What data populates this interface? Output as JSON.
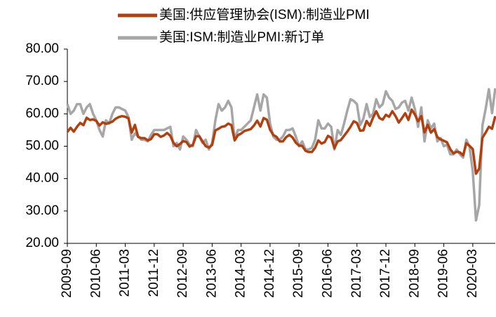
{
  "chart_data": {
    "type": "line",
    "categories": [
      "2009-09",
      null,
      null,
      null,
      null,
      null,
      null,
      null,
      null,
      "2010-06",
      null,
      null,
      null,
      null,
      null,
      null,
      null,
      null,
      "2011-03",
      null,
      null,
      null,
      null,
      null,
      null,
      null,
      null,
      "2011-12",
      null,
      null,
      null,
      null,
      null,
      null,
      null,
      null,
      "2012-09",
      null,
      null,
      null,
      null,
      null,
      null,
      null,
      null,
      "2013-06",
      null,
      null,
      null,
      null,
      null,
      null,
      null,
      null,
      "2014-03",
      null,
      null,
      null,
      null,
      null,
      null,
      null,
      null,
      "2014-12",
      null,
      null,
      null,
      null,
      null,
      null,
      null,
      null,
      "2015-09",
      null,
      null,
      null,
      null,
      null,
      null,
      null,
      null,
      "2016-06",
      null,
      null,
      null,
      null,
      null,
      null,
      null,
      null,
      "2017-03",
      null,
      null,
      null,
      null,
      null,
      null,
      null,
      null,
      "2017-12",
      null,
      null,
      null,
      null,
      null,
      null,
      null,
      null,
      "2018-09",
      null,
      null,
      null,
      null,
      null,
      null,
      null,
      null,
      "2019-06",
      null,
      null,
      null,
      null,
      null,
      null,
      null,
      null,
      "2020-03",
      null,
      null,
      null,
      null,
      null,
      null,
      null
    ],
    "series": [
      {
        "name": "美国:供应管理协会(ISM):制造业PMI",
        "color": "#b2400f",
        "values": [
          54.4,
          55.7,
          54.5,
          56.0,
          57.2,
          56.5,
          58.8,
          58.1,
          58.3,
          57.8,
          56.4,
          57.4,
          56.9,
          57.2,
          57.6,
          58.5,
          59.0,
          59.3,
          59.1,
          58.6,
          54.2,
          56.6,
          52.9,
          52.5,
          52.5,
          51.8,
          52.2,
          53.7,
          53.7,
          52.9,
          53.3,
          54.1,
          53.2,
          51.0,
          50.0,
          50.7,
          51.6,
          51.3,
          49.9,
          50.4,
          53.1,
          53.1,
          51.5,
          50.0,
          49.6,
          50.4,
          54.9,
          55.4,
          56.0,
          56.2,
          57.0,
          56.5,
          51.8,
          53.4,
          53.9,
          54.7,
          55.0,
          55.3,
          56.4,
          57.9,
          56.1,
          58.7,
          58.2,
          55.1,
          53.5,
          52.9,
          51.5,
          51.5,
          52.8,
          53.5,
          52.7,
          51.1,
          50.2,
          50.1,
          48.6,
          48.2,
          48.2,
          49.5,
          51.8,
          50.8,
          51.3,
          53.2,
          52.6,
          49.4,
          51.5,
          51.9,
          53.2,
          54.5,
          56.0,
          57.7,
          57.2,
          54.8,
          54.9,
          57.8,
          56.3,
          58.8,
          60.8,
          58.7,
          58.2,
          59.7,
          59.1,
          60.8,
          59.3,
          57.3,
          58.7,
          60.2,
          58.1,
          61.3,
          59.8,
          57.7,
          59.3,
          54.3,
          56.6,
          54.2,
          55.3,
          52.8,
          52.1,
          51.7,
          51.2,
          49.1,
          47.8,
          48.3,
          48.1,
          47.2,
          50.9,
          50.1,
          49.1,
          41.5,
          43.1,
          52.6,
          54.2,
          56.0,
          55.4,
          59.3
        ]
      },
      {
        "name": "美国:ISM:制造业PMI:新订单",
        "color": "#a6a6a6",
        "values": [
          63.0,
          60.0,
          61.0,
          63.0,
          63.0,
          60.0,
          62.0,
          63.0,
          60.0,
          58.0,
          55.0,
          53.0,
          58.0,
          57.0,
          60.0,
          62.0,
          62.0,
          61.5,
          61.0,
          59.0,
          52.0,
          54.0,
          53.0,
          52.0,
          52.0,
          51.5,
          53.5,
          55.0,
          55.0,
          55.0,
          55.0,
          55.5,
          56.0,
          50.0,
          51.0,
          49.0,
          53.0,
          52.0,
          50.5,
          50.0,
          55.0,
          53.0,
          51.0,
          52.0,
          49.0,
          51.0,
          58.0,
          63.0,
          61.0,
          62.0,
          64.0,
          62.0,
          52.0,
          55.0,
          55.0,
          56.0,
          57.0,
          58.0,
          62.0,
          66.0,
          61.0,
          66.0,
          65.0,
          57.0,
          53.0,
          52.0,
          52.0,
          53.0,
          55.0,
          55.0,
          55.5,
          53.0,
          50.0,
          51.5,
          49.0,
          49.0,
          49.5,
          52.0,
          58.0,
          55.5,
          55.5,
          57.0,
          56.0,
          49.0,
          55.0,
          53.5,
          57.0,
          61.0,
          64.5,
          64.0,
          63.0,
          56.5,
          58.5,
          63.0,
          59.0,
          60.0,
          64.5,
          62.0,
          63.0,
          67.0,
          65.0,
          64.0,
          61.5,
          62.0,
          63.5,
          64.0,
          61.0,
          65.0,
          61.5,
          56.0,
          62.0,
          51.5,
          58.0,
          55.5,
          57.0,
          51.5,
          52.5,
          50.0,
          50.5,
          47.5,
          47.5,
          49.0,
          47.5,
          46.5,
          52.0,
          49.8,
          42.2,
          27.1,
          31.8,
          56.4,
          61.5,
          67.6,
          60.2,
          67.9
        ]
      }
    ],
    "ylim": [
      20,
      80
    ],
    "yticks": [
      {
        "value": 20,
        "label": "20.00"
      },
      {
        "value": 30,
        "label": "30.00"
      },
      {
        "value": 40,
        "label": "40.00"
      },
      {
        "value": 50,
        "label": "50.00"
      },
      {
        "value": 60,
        "label": "60.00"
      },
      {
        "value": 70,
        "label": "70.00"
      },
      {
        "value": 80,
        "label": "80.00"
      }
    ],
    "grid": false
  }
}
